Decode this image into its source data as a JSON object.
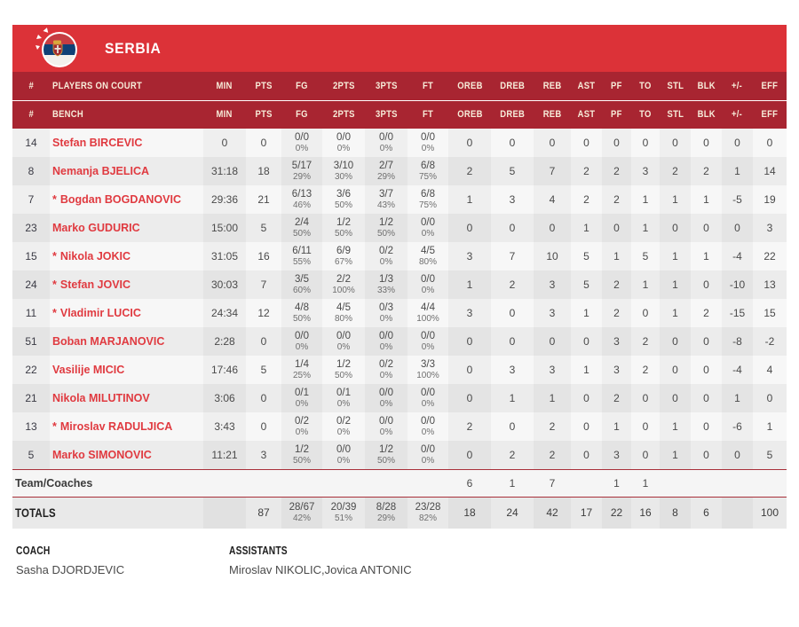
{
  "team": {
    "name": "SERBIA"
  },
  "colors": {
    "banner_red": "#dc3238",
    "header_red": "#a82531",
    "header_text": "#f7ecd9",
    "player_name_red": "#e03a40",
    "flag_red": "#c63c42",
    "flag_blue": "#0f4076"
  },
  "icons": {
    "flag": "serbia-flag-icon"
  },
  "table": {
    "col_num": "#",
    "on_court_label": "PLAYERS ON COURT",
    "bench_label": "BENCH",
    "stat_headers": [
      "MIN",
      "PTS",
      "FG",
      "2PTS",
      "3PTS",
      "FT",
      "OREB",
      "DREB",
      "REB",
      "AST",
      "PF",
      "TO",
      "STL",
      "BLK",
      "+/-",
      "EFF"
    ],
    "players": [
      {
        "num": "14",
        "starter": false,
        "name": "Stefan BIRCEVIC",
        "min": "0",
        "pts": "0",
        "fg": "0/0",
        "fg_pct": "0%",
        "p2": "0/0",
        "p2_pct": "0%",
        "p3": "0/0",
        "p3_pct": "0%",
        "ft": "0/0",
        "ft_pct": "0%",
        "oreb": "0",
        "dreb": "0",
        "reb": "0",
        "ast": "0",
        "pf": "0",
        "to": "0",
        "stl": "0",
        "blk": "0",
        "plus_minus": "0",
        "eff": "0"
      },
      {
        "num": "8",
        "starter": false,
        "name": "Nemanja BJELICA",
        "min": "31:18",
        "pts": "18",
        "fg": "5/17",
        "fg_pct": "29%",
        "p2": "3/10",
        "p2_pct": "30%",
        "p3": "2/7",
        "p3_pct": "29%",
        "ft": "6/8",
        "ft_pct": "75%",
        "oreb": "2",
        "dreb": "5",
        "reb": "7",
        "ast": "2",
        "pf": "2",
        "to": "3",
        "stl": "2",
        "blk": "2",
        "plus_minus": "1",
        "eff": "14"
      },
      {
        "num": "7",
        "starter": true,
        "name": "Bogdan BOGDANOVIC",
        "min": "29:36",
        "pts": "21",
        "fg": "6/13",
        "fg_pct": "46%",
        "p2": "3/6",
        "p2_pct": "50%",
        "p3": "3/7",
        "p3_pct": "43%",
        "ft": "6/8",
        "ft_pct": "75%",
        "oreb": "1",
        "dreb": "3",
        "reb": "4",
        "ast": "2",
        "pf": "2",
        "to": "1",
        "stl": "1",
        "blk": "1",
        "plus_minus": "-5",
        "eff": "19"
      },
      {
        "num": "23",
        "starter": false,
        "name": "Marko GUDURIC",
        "min": "15:00",
        "pts": "5",
        "fg": "2/4",
        "fg_pct": "50%",
        "p2": "1/2",
        "p2_pct": "50%",
        "p3": "1/2",
        "p3_pct": "50%",
        "ft": "0/0",
        "ft_pct": "0%",
        "oreb": "0",
        "dreb": "0",
        "reb": "0",
        "ast": "1",
        "pf": "0",
        "to": "1",
        "stl": "0",
        "blk": "0",
        "plus_minus": "0",
        "eff": "3"
      },
      {
        "num": "15",
        "starter": true,
        "name": "Nikola JOKIC",
        "min": "31:05",
        "pts": "16",
        "fg": "6/11",
        "fg_pct": "55%",
        "p2": "6/9",
        "p2_pct": "67%",
        "p3": "0/2",
        "p3_pct": "0%",
        "ft": "4/5",
        "ft_pct": "80%",
        "oreb": "3",
        "dreb": "7",
        "reb": "10",
        "ast": "5",
        "pf": "1",
        "to": "5",
        "stl": "1",
        "blk": "1",
        "plus_minus": "-4",
        "eff": "22"
      },
      {
        "num": "24",
        "starter": true,
        "name": "Stefan JOVIC",
        "min": "30:03",
        "pts": "7",
        "fg": "3/5",
        "fg_pct": "60%",
        "p2": "2/2",
        "p2_pct": "100%",
        "p3": "1/3",
        "p3_pct": "33%",
        "ft": "0/0",
        "ft_pct": "0%",
        "oreb": "1",
        "dreb": "2",
        "reb": "3",
        "ast": "5",
        "pf": "2",
        "to": "1",
        "stl": "1",
        "blk": "0",
        "plus_minus": "-10",
        "eff": "13"
      },
      {
        "num": "11",
        "starter": true,
        "name": "Vladimir LUCIC",
        "min": "24:34",
        "pts": "12",
        "fg": "4/8",
        "fg_pct": "50%",
        "p2": "4/5",
        "p2_pct": "80%",
        "p3": "0/3",
        "p3_pct": "0%",
        "ft": "4/4",
        "ft_pct": "100%",
        "oreb": "3",
        "dreb": "0",
        "reb": "3",
        "ast": "1",
        "pf": "2",
        "to": "0",
        "stl": "1",
        "blk": "2",
        "plus_minus": "-15",
        "eff": "15"
      },
      {
        "num": "51",
        "starter": false,
        "name": "Boban MARJANOVIC",
        "min": "2:28",
        "pts": "0",
        "fg": "0/0",
        "fg_pct": "0%",
        "p2": "0/0",
        "p2_pct": "0%",
        "p3": "0/0",
        "p3_pct": "0%",
        "ft": "0/0",
        "ft_pct": "0%",
        "oreb": "0",
        "dreb": "0",
        "reb": "0",
        "ast": "0",
        "pf": "3",
        "to": "2",
        "stl": "0",
        "blk": "0",
        "plus_minus": "-8",
        "eff": "-2"
      },
      {
        "num": "22",
        "starter": false,
        "name": "Vasilije MICIC",
        "min": "17:46",
        "pts": "5",
        "fg": "1/4",
        "fg_pct": "25%",
        "p2": "1/2",
        "p2_pct": "50%",
        "p3": "0/2",
        "p3_pct": "0%",
        "ft": "3/3",
        "ft_pct": "100%",
        "oreb": "0",
        "dreb": "3",
        "reb": "3",
        "ast": "1",
        "pf": "3",
        "to": "2",
        "stl": "0",
        "blk": "0",
        "plus_minus": "-4",
        "eff": "4"
      },
      {
        "num": "21",
        "starter": false,
        "name": "Nikola MILUTINOV",
        "min": "3:06",
        "pts": "0",
        "fg": "0/1",
        "fg_pct": "0%",
        "p2": "0/1",
        "p2_pct": "0%",
        "p3": "0/0",
        "p3_pct": "0%",
        "ft": "0/0",
        "ft_pct": "0%",
        "oreb": "0",
        "dreb": "1",
        "reb": "1",
        "ast": "0",
        "pf": "2",
        "to": "0",
        "stl": "0",
        "blk": "0",
        "plus_minus": "1",
        "eff": "0"
      },
      {
        "num": "13",
        "starter": true,
        "name": "Miroslav RADULJICA",
        "min": "3:43",
        "pts": "0",
        "fg": "0/2",
        "fg_pct": "0%",
        "p2": "0/2",
        "p2_pct": "0%",
        "p3": "0/0",
        "p3_pct": "0%",
        "ft": "0/0",
        "ft_pct": "0%",
        "oreb": "2",
        "dreb": "0",
        "reb": "2",
        "ast": "0",
        "pf": "1",
        "to": "0",
        "stl": "1",
        "blk": "0",
        "plus_minus": "-6",
        "eff": "1"
      },
      {
        "num": "5",
        "starter": false,
        "name": "Marko SIMONOVIC",
        "min": "11:21",
        "pts": "3",
        "fg": "1/2",
        "fg_pct": "50%",
        "p2": "0/0",
        "p2_pct": "0%",
        "p3": "1/2",
        "p3_pct": "50%",
        "ft": "0/0",
        "ft_pct": "0%",
        "oreb": "0",
        "dreb": "2",
        "reb": "2",
        "ast": "0",
        "pf": "3",
        "to": "0",
        "stl": "1",
        "blk": "0",
        "plus_minus": "0",
        "eff": "5"
      }
    ],
    "starter_marker": "*",
    "team_coaches": {
      "label": "Team/Coaches",
      "oreb": "6",
      "dreb": "1",
      "reb": "7",
      "ast": "",
      "pf": "1",
      "to": "1"
    },
    "totals": {
      "label": "TOTALS",
      "min": "",
      "pts": "87",
      "fg": "28/67",
      "fg_pct": "42%",
      "p2": "20/39",
      "p2_pct": "51%",
      "p3": "8/28",
      "p3_pct": "29%",
      "ft": "23/28",
      "ft_pct": "82%",
      "oreb": "18",
      "dreb": "24",
      "reb": "42",
      "ast": "17",
      "pf": "22",
      "to": "16",
      "stl": "8",
      "blk": "6",
      "plus_minus": "",
      "eff": "100"
    }
  },
  "staff": {
    "coach_label": "COACH",
    "coach_name": "Sasha DJORDJEVIC",
    "assistants_label": "ASSISTANTS",
    "assistants_names": "Miroslav NIKOLIC,Jovica ANTONIC"
  }
}
